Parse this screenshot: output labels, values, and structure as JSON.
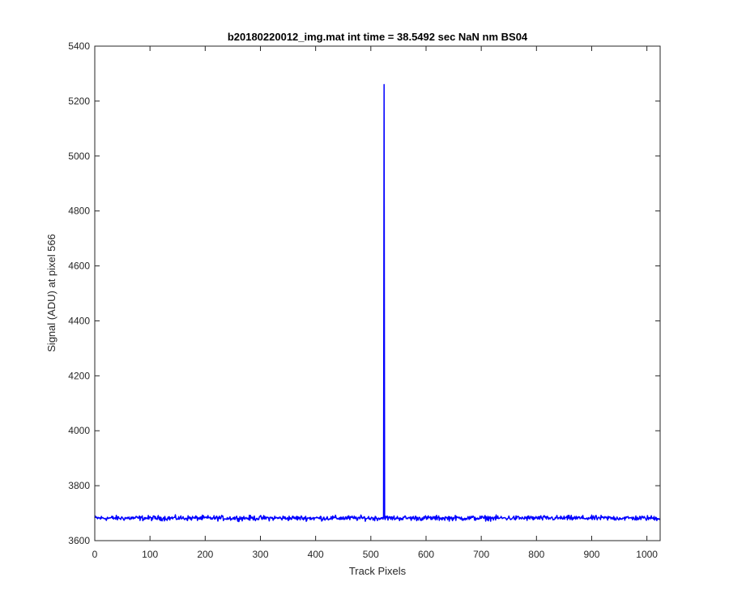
{
  "chart_data": {
    "type": "line",
    "title": "b20180220012_img.mat int time = 38.5492 sec  NaN nm BS04",
    "xlabel": "Track Pixels",
    "ylabel": "Signal (ADU) at pixel 566",
    "xlim": [
      0,
      1024
    ],
    "ylim": [
      3600,
      5400
    ],
    "xticks": [
      0,
      100,
      200,
      300,
      400,
      500,
      600,
      700,
      800,
      900,
      1000
    ],
    "yticks": [
      3600,
      3800,
      4000,
      4200,
      4400,
      4600,
      4800,
      5000,
      5200,
      5400
    ],
    "grid": false,
    "series": [
      {
        "color": "#0000ff",
        "baseline": 3682,
        "noise_amplitude": 9,
        "spike": {
          "x": 524,
          "y": 5260
        }
      }
    ]
  }
}
